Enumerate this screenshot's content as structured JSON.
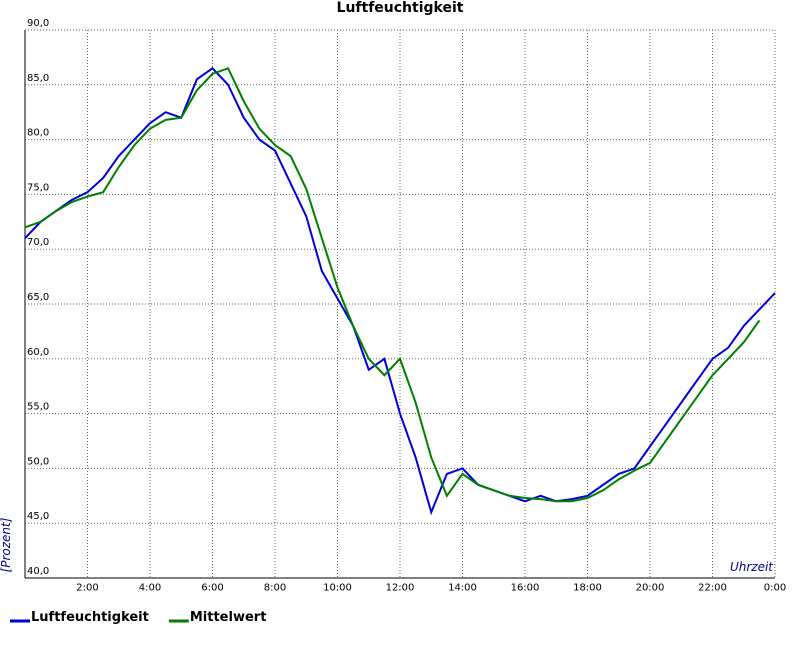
{
  "chart_data": {
    "type": "line",
    "title": "Luftfeuchtigkeit",
    "ylabel": "[Prozent]",
    "xlabel": "Uhrzeit",
    "x": [
      0,
      0.5,
      1,
      1.5,
      2,
      2.5,
      3,
      3.5,
      4,
      4.5,
      5,
      5.5,
      6,
      6.5,
      7,
      7.5,
      8,
      8.5,
      9,
      9.5,
      10,
      10.5,
      11,
      11.5,
      12,
      12.5,
      13,
      13.5,
      14,
      14.5,
      15,
      15.5,
      16,
      16.5,
      17,
      17.5,
      18,
      18.5,
      19,
      19.5,
      20,
      20.5,
      21,
      21.5,
      22,
      22.5,
      23,
      23.5,
      24
    ],
    "series": [
      {
        "name": "Luftfeuchtigkeit",
        "color": "#0000dd",
        "values": [
          71,
          72.5,
          73.5,
          74.5,
          75.2,
          76.5,
          78.5,
          80,
          81.5,
          82.5,
          82,
          85.5,
          86.5,
          85,
          82,
          80,
          79,
          76,
          73,
          68,
          65.5,
          63,
          59,
          60,
          55,
          51,
          46,
          49.5,
          50,
          48.5,
          48,
          47.5,
          47,
          47.5,
          47,
          47.2,
          47.5,
          48.5,
          49.5,
          50,
          52,
          54,
          56,
          58,
          60,
          61,
          63,
          64.5,
          66
        ]
      },
      {
        "name": "Mittelwert",
        "color": "#008000",
        "values": [
          72,
          72.5,
          73.5,
          74.3,
          74.8,
          75.2,
          77.5,
          79.5,
          81,
          81.8,
          82,
          84.5,
          86,
          86.5,
          83.5,
          81,
          79.5,
          78.5,
          75.5,
          71,
          66.5,
          63,
          60,
          58.5,
          60,
          56,
          51,
          47.5,
          49.5,
          48.5,
          48,
          47.5,
          47.3,
          47.2,
          47,
          47,
          47.3,
          48,
          49,
          49.8,
          50.5,
          52.5,
          54.5,
          56.5,
          58.5,
          60,
          61.5,
          63.5,
          null
        ]
      }
    ],
    "xlim": [
      0,
      24
    ],
    "xticks": [
      {
        "value": 2,
        "label": "2:00"
      },
      {
        "value": 4,
        "label": "4:00"
      },
      {
        "value": 6,
        "label": "6:00"
      },
      {
        "value": 8,
        "label": "8:00"
      },
      {
        "value": 10,
        "label": "10:00"
      },
      {
        "value": 12,
        "label": "12:00"
      },
      {
        "value": 14,
        "label": "14:00"
      },
      {
        "value": 16,
        "label": "16:00"
      },
      {
        "value": 18,
        "label": "18:00"
      },
      {
        "value": 20,
        "label": "20:00"
      },
      {
        "value": 22,
        "label": "22:00"
      },
      {
        "value": 24,
        "label": "0:00"
      }
    ],
    "ylim": [
      40,
      90
    ],
    "yticks": [
      {
        "value": 40,
        "label": "40,0"
      },
      {
        "value": 45,
        "label": "45,0"
      },
      {
        "value": 50,
        "label": "50,0"
      },
      {
        "value": 55,
        "label": "55,0"
      },
      {
        "value": 60,
        "label": "60,0"
      },
      {
        "value": 65,
        "label": "65,0"
      },
      {
        "value": 70,
        "label": "70,0"
      },
      {
        "value": 75,
        "label": "75,0"
      },
      {
        "value": 80,
        "label": "80,0"
      },
      {
        "value": 85,
        "label": "85,0"
      },
      {
        "value": 90,
        "label": "90,0"
      }
    ],
    "grid": true
  }
}
